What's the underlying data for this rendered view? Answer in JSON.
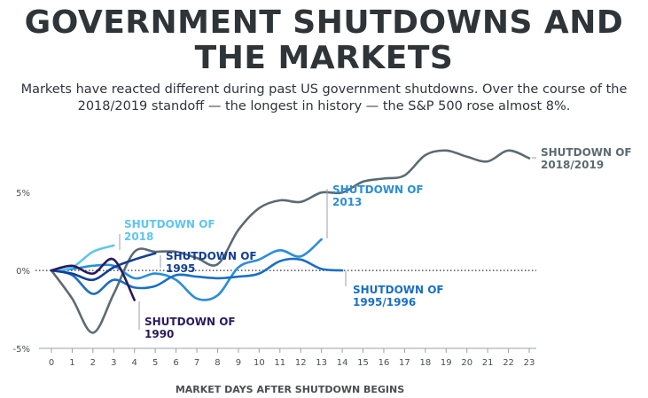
{
  "chart_data": {
    "type": "line",
    "title": "GOVERNMENT SHUTDOWNS AND THE MARKETS",
    "subtitle": "Markets have reacted different during past US government shutdowns. Over the course of the 2018/2019 standoff — the longest in history — the S&P 500 rose almost 8%.",
    "xlabel": "MARKET DAYS AFTER SHUTDOWN BEGINS",
    "ylabel": "",
    "x_ticks": [
      "0",
      "1",
      "2",
      "3",
      "4",
      "5",
      "6",
      "7",
      "8",
      "9",
      "10",
      "11",
      "12",
      "13",
      "14",
      "15",
      "16",
      "17",
      "18",
      "19",
      "20",
      "21",
      "22",
      "23"
    ],
    "y_ticks": [
      {
        "value": 5,
        "label": "5%"
      },
      {
        "value": 0,
        "label": "0%"
      },
      {
        "value": -5,
        "label": "-5%"
      }
    ],
    "xlim": [
      0,
      23
    ],
    "ylim": [
      -5,
      7.8
    ],
    "baseline": 0,
    "grid": false,
    "series": [
      {
        "name": "SHUTDOWN OF 2018/2019",
        "color": "#5b6b72",
        "points": [
          [
            0,
            0
          ],
          [
            1,
            -1.8
          ],
          [
            2,
            -4.0
          ],
          [
            3,
            -1.5
          ],
          [
            4,
            1.2
          ],
          [
            5,
            1.2
          ],
          [
            6,
            1.2
          ],
          [
            7,
            0.8
          ],
          [
            8,
            0.4
          ],
          [
            9,
            2.6
          ],
          [
            10,
            4.0
          ],
          [
            11,
            4.5
          ],
          [
            12,
            4.4
          ],
          [
            13,
            5.0
          ],
          [
            14,
            5.0
          ],
          [
            15,
            5.7
          ],
          [
            16,
            5.9
          ],
          [
            17,
            6.1
          ],
          [
            18,
            7.4
          ],
          [
            19,
            7.7
          ],
          [
            20,
            7.3
          ],
          [
            21,
            7.0
          ],
          [
            22,
            7.7
          ],
          [
            23,
            7.2
          ]
        ]
      },
      {
        "name": "SHUTDOWN OF 2013",
        "color": "#2a8fd6",
        "points": [
          [
            0,
            0
          ],
          [
            1,
            0.1
          ],
          [
            2,
            0.3
          ],
          [
            3,
            0.3
          ],
          [
            4,
            -0.5
          ],
          [
            5,
            -0.2
          ],
          [
            6,
            -0.6
          ],
          [
            7,
            -1.8
          ],
          [
            8,
            -1.6
          ],
          [
            9,
            0.2
          ],
          [
            10,
            0.7
          ],
          [
            11,
            1.3
          ],
          [
            12,
            0.9
          ],
          [
            13,
            2.0
          ]
        ]
      },
      {
        "name": "SHUTDOWN OF 1995/1996",
        "color": "#1a6fc4",
        "points": [
          [
            0,
            0
          ],
          [
            1,
            -0.3
          ],
          [
            2,
            -1.5
          ],
          [
            3,
            -0.6
          ],
          [
            4,
            -1.1
          ],
          [
            5,
            -1.0
          ],
          [
            6,
            -0.3
          ],
          [
            7,
            -0.4
          ],
          [
            8,
            -0.5
          ],
          [
            9,
            -0.4
          ],
          [
            10,
            -0.2
          ],
          [
            11,
            0.6
          ],
          [
            12,
            0.7
          ],
          [
            13,
            0.1
          ],
          [
            14,
            0.0
          ]
        ]
      },
      {
        "name": "SHUTDOWN OF 2018",
        "color": "#5ec6ef",
        "points": [
          [
            0,
            0
          ],
          [
            1,
            0.2
          ],
          [
            2,
            1.2
          ],
          [
            3,
            1.6
          ]
        ]
      },
      {
        "name": "SHUTDOWN OF 1995",
        "color": "#123f93",
        "points": [
          [
            0,
            0
          ],
          [
            1,
            -0.2
          ],
          [
            2,
            -0.6
          ],
          [
            3,
            0.2
          ],
          [
            4,
            0.7
          ],
          [
            5,
            1.1
          ]
        ]
      },
      {
        "name": "SHUTDOWN OF 1990",
        "color": "#2b1b5c",
        "points": [
          [
            0,
            0
          ],
          [
            1,
            0.3
          ],
          [
            2,
            -0.2
          ],
          [
            3,
            0.7
          ],
          [
            4,
            -1.9
          ]
        ]
      }
    ],
    "annotations": [
      {
        "series": "SHUTDOWN OF 2018/2019",
        "lines": [
          "SHUTDOWN OF",
          "2018/2019"
        ],
        "color": "#5b6b72"
      },
      {
        "series": "SHUTDOWN OF 2013",
        "lines": [
          "SHUTDOWN OF",
          "2013"
        ],
        "color": "#2a8fd6"
      },
      {
        "series": "SHUTDOWN OF 1995/1996",
        "lines": [
          "SHUTDOWN OF",
          "1995/1996"
        ],
        "color": "#1a6fc4"
      },
      {
        "series": "SHUTDOWN OF 2018",
        "lines": [
          "SHUTDOWN OF",
          "2018"
        ],
        "color": "#5ec6ef"
      },
      {
        "series": "SHUTDOWN OF 1995",
        "lines": [
          "SHUTDOWN OF",
          "1995"
        ],
        "color": "#123f93"
      },
      {
        "series": "SHUTDOWN OF 1990",
        "lines": [
          "SHUTDOWN OF",
          "1990"
        ],
        "color": "#2b1b5c"
      }
    ]
  }
}
